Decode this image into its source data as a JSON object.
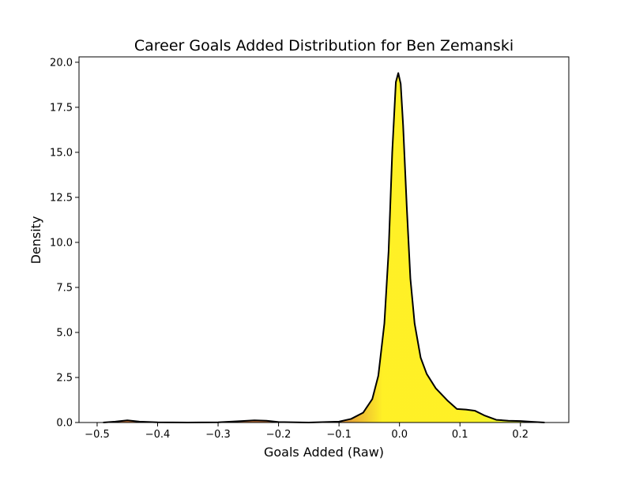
{
  "chart_data": {
    "type": "area",
    "title": "Career Goals Added Distribution for Ben Zemanski",
    "xlabel": "Goals Added (Raw)",
    "ylabel": "Density",
    "xlim": [
      -0.53,
      0.28
    ],
    "ylim": [
      0,
      20.3
    ],
    "x_ticks": [
      -0.5,
      -0.4,
      -0.3,
      -0.2,
      -0.1,
      0.0,
      0.1,
      0.2
    ],
    "x_tick_labels": [
      "−0.5",
      "−0.4",
      "−0.3",
      "−0.2",
      "−0.1",
      "0.0",
      "0.1",
      "0.2"
    ],
    "y_ticks": [
      0,
      2.5,
      5,
      7.5,
      10,
      12.5,
      15,
      17.5,
      20
    ],
    "y_tick_labels": [
      "0.0",
      "2.5",
      "5.0",
      "7.5",
      "10.0",
      "12.5",
      "15.0",
      "17.5",
      "20.0"
    ],
    "grid": false,
    "series": [
      {
        "x": [
          -0.49,
          -0.47,
          -0.45,
          -0.43,
          -0.4,
          -0.35,
          -0.3,
          -0.26,
          -0.24,
          -0.22,
          -0.2,
          -0.15,
          -0.1,
          -0.08,
          -0.06,
          -0.045,
          -0.035,
          -0.025,
          -0.018,
          -0.012,
          -0.006,
          -0.002,
          0.002,
          0.006,
          0.012,
          0.018,
          0.025,
          0.035,
          0.045,
          0.06,
          0.08,
          0.095,
          0.11,
          0.125,
          0.14,
          0.16,
          0.18,
          0.2,
          0.22,
          0.24
        ],
        "y": [
          0.0,
          0.05,
          0.12,
          0.05,
          0.01,
          0.0,
          0.01,
          0.08,
          0.12,
          0.1,
          0.03,
          0.0,
          0.05,
          0.2,
          0.55,
          1.3,
          2.6,
          5.5,
          9.5,
          15.0,
          18.9,
          19.4,
          18.8,
          16.5,
          12.0,
          8.0,
          5.5,
          3.6,
          2.7,
          1.9,
          1.2,
          0.75,
          0.72,
          0.65,
          0.4,
          0.15,
          0.1,
          0.08,
          0.04,
          0.0
        ]
      }
    ],
    "colors": {
      "line": "#000000",
      "fill_low": "#d2691e",
      "fill_peak": "#ffee00",
      "fill_high": "#ccff22"
    }
  }
}
